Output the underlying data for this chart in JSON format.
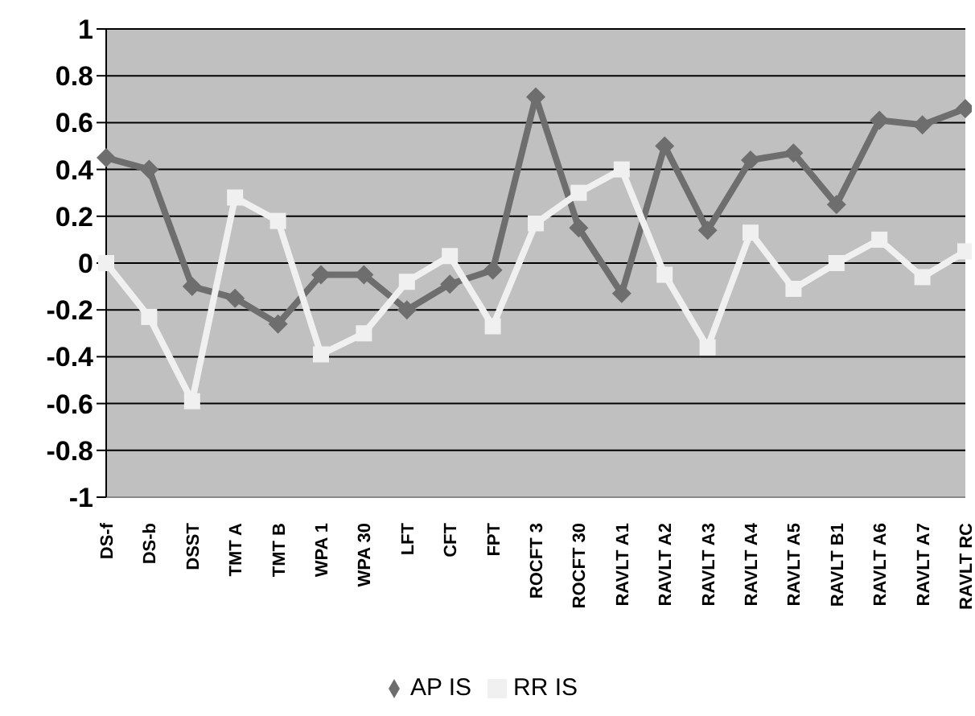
{
  "chart_data": {
    "type": "line",
    "categories": [
      "DS-f",
      "DS-b",
      "DSST",
      "TMT A",
      "TMT B",
      "WPA 1",
      "WPA 30",
      "LFT",
      "CFT",
      "FPT",
      "ROCFT 3",
      "ROCFT 30",
      "RAVLT A1",
      "RAVLT A2",
      "RAVLT A3",
      "RAVLT A4",
      "RAVLT A5",
      "RAVLT B1",
      "RAVLT A6",
      "RAVLT A7",
      "RAVLT RC"
    ],
    "series": [
      {
        "name": "AP IS",
        "color": "#6e6e6e",
        "marker": "diamond",
        "values": [
          0.45,
          0.4,
          -0.1,
          -0.15,
          -0.26,
          -0.05,
          -0.05,
          -0.2,
          -0.09,
          -0.03,
          0.71,
          0.15,
          -0.13,
          0.5,
          0.14,
          0.44,
          0.47,
          0.25,
          0.61,
          0.59,
          0.66
        ]
      },
      {
        "name": "RR IS",
        "color": "#f0f0f0",
        "marker": "square",
        "values": [
          0.0,
          -0.23,
          -0.59,
          0.28,
          0.18,
          -0.39,
          -0.3,
          -0.08,
          0.03,
          -0.27,
          0.17,
          0.3,
          0.4,
          -0.05,
          -0.36,
          0.13,
          -0.11,
          0.0,
          0.1,
          -0.06,
          0.05
        ]
      }
    ],
    "ylim": [
      -1,
      1
    ],
    "yticks": [
      -1,
      -0.8,
      -0.6,
      -0.4,
      -0.2,
      0,
      0.2,
      0.4,
      0.6,
      0.8,
      1
    ],
    "grid": "y",
    "legend": "bottom",
    "line_style": "solid"
  }
}
